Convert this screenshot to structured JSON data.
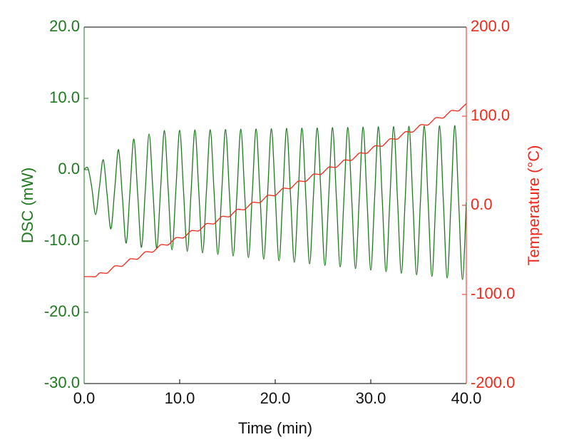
{
  "chart_data": {
    "type": "line",
    "xlabel": "Time (min)",
    "ylabel": "DSC (mW)",
    "y2label": "Temperature (°C)",
    "xlim": [
      0,
      40
    ],
    "xticks": [
      {
        "value": 0,
        "label": "0.0"
      },
      {
        "value": 10,
        "label": "10.0"
      },
      {
        "value": 20,
        "label": "20.0"
      },
      {
        "value": 30,
        "label": "30.0"
      },
      {
        "value": 40,
        "label": "40.0"
      }
    ],
    "ylim": [
      -30,
      20
    ],
    "yticks": [
      {
        "value": -30,
        "label": "-30.0"
      },
      {
        "value": -20,
        "label": "-20.0"
      },
      {
        "value": -10,
        "label": "-10.0"
      },
      {
        "value": 0,
        "label": "0.0"
      },
      {
        "value": 10,
        "label": "10.0"
      },
      {
        "value": 20,
        "label": "20.0"
      }
    ],
    "y2lim": [
      -200,
      200
    ],
    "y2ticks": [
      {
        "value": -200,
        "label": "-200.0"
      },
      {
        "value": -100,
        "label": "-100.0"
      },
      {
        "value": 0,
        "label": "0.0"
      },
      {
        "value": 100,
        "label": "100.0"
      },
      {
        "value": 200,
        "label": "200.0"
      }
    ],
    "grid": false,
    "x": [
      0,
      0.4,
      0.8,
      1.2,
      1.6,
      2,
      2.4,
      2.8,
      3.2,
      3.6,
      4,
      4.4,
      4.8,
      5.2,
      5.6,
      6,
      6.4,
      6.8,
      7.2,
      7.6,
      8,
      8.4,
      8.8,
      9.2,
      9.6,
      10,
      10.4,
      10.8,
      11.2,
      11.6,
      12,
      12.4,
      12.8,
      13.2,
      13.6,
      14,
      14.4,
      14.8,
      15.2,
      15.6,
      16,
      16.4,
      16.8,
      17.2,
      17.6,
      18,
      18.4,
      18.8,
      19.2,
      19.6,
      20,
      20.4,
      20.8,
      21.2,
      21.6,
      22,
      22.4,
      22.8,
      23.2,
      23.6,
      24,
      24.4,
      24.8,
      25.2,
      25.6,
      26,
      26.4,
      26.8,
      27.2,
      27.6,
      28,
      28.4,
      28.8,
      29.2,
      29.6,
      30,
      30.4,
      30.8,
      31.2,
      31.6,
      32,
      32.4,
      32.8,
      33.2,
      33.6,
      34,
      34.4,
      34.8,
      35.2,
      35.6,
      36,
      36.4,
      36.8,
      37.2,
      37.6,
      38,
      38.4,
      38.8,
      39.2,
      39.6,
      40
    ],
    "series": [
      {
        "name": "DSC",
        "color": "#1f7a1f",
        "axis": "y",
        "values": [
          0,
          0.2,
          -2.5,
          -6.3,
          -2.45,
          1.4,
          -3.45,
          -8.3,
          -2.75,
          2.8,
          -3.75,
          -10.3,
          -3.0,
          4.3,
          -3.3,
          -10.9,
          -2.95,
          5.0,
          -3.0,
          -11.0,
          -2.75,
          5.5,
          -2.87,
          -11.23,
          -2.85,
          5.54,
          -2.96,
          -11.45,
          -2.94,
          5.58,
          -3.05,
          -11.67,
          -3.03,
          5.61,
          -3.14,
          -11.89,
          -3.12,
          5.65,
          -3.23,
          -12.11,
          -3.21,
          5.69,
          -3.32,
          -12.33,
          -3.31,
          5.72,
          -3.42,
          -12.55,
          -3.4,
          5.76,
          -3.51,
          -12.77,
          -3.49,
          5.8,
          -3.6,
          -12.99,
          -3.58,
          5.83,
          -3.69,
          -13.2,
          -3.67,
          5.87,
          -3.78,
          -13.42,
          -3.76,
          5.91,
          -3.87,
          -13.64,
          -3.85,
          5.94,
          -3.96,
          -13.86,
          -3.94,
          5.98,
          -4.05,
          -14.08,
          -4.03,
          6.02,
          -4.14,
          -14.3,
          -4.13,
          6.05,
          -4.24,
          -14.52,
          -4.22,
          6.09,
          -4.33,
          -14.74,
          -4.31,
          6.13,
          -4.42,
          -14.96,
          -4.4,
          6.16,
          -4.51,
          -15.18,
          -4.49,
          6.2,
          -4.6,
          -15.4,
          -4.58
        ]
      },
      {
        "name": "Temperature",
        "color": "#ee2a1b",
        "axis": "y2",
        "values": [
          -80,
          -80,
          -80,
          -80.0,
          -76.0,
          -76.0,
          -76.1,
          -72.1,
          -68.1,
          -68.1,
          -68.2,
          -64.2,
          -60.2,
          -60.2,
          -60.3,
          -56.2,
          -52.2,
          -52.2,
          -52.3,
          -48.3,
          -44.3,
          -44.3,
          -44.4,
          -40.4,
          -36.4,
          -36.4,
          -36.5,
          -32.5,
          -28.5,
          -28.5,
          -28.6,
          -24.6,
          -20.6,
          -20.6,
          -20.7,
          -16.6,
          -12.6,
          -12.6,
          -12.7,
          -8.7,
          -4.7,
          -4.7,
          -4.8,
          -0.8,
          3.2,
          3.2,
          3.1,
          7.1,
          11.1,
          11.1,
          11.0,
          15.0,
          19.0,
          19.0,
          18.9,
          23.0,
          27.0,
          27.0,
          26.9,
          30.9,
          34.9,
          34.9,
          34.8,
          38.8,
          42.8,
          42.8,
          42.7,
          46.7,
          50.7,
          50.7,
          50.6,
          54.6,
          58.6,
          58.6,
          58.5,
          62.6,
          66.6,
          66.6,
          66.5,
          70.5,
          74.5,
          74.5,
          74.4,
          78.4,
          82.4,
          82.4,
          82.3,
          86.3,
          90.3,
          90.3,
          90.2,
          94.2,
          98.2,
          98.2,
          98.1,
          102.2,
          106.2,
          106.2,
          106.1,
          110.1,
          114.1
        ]
      }
    ]
  }
}
